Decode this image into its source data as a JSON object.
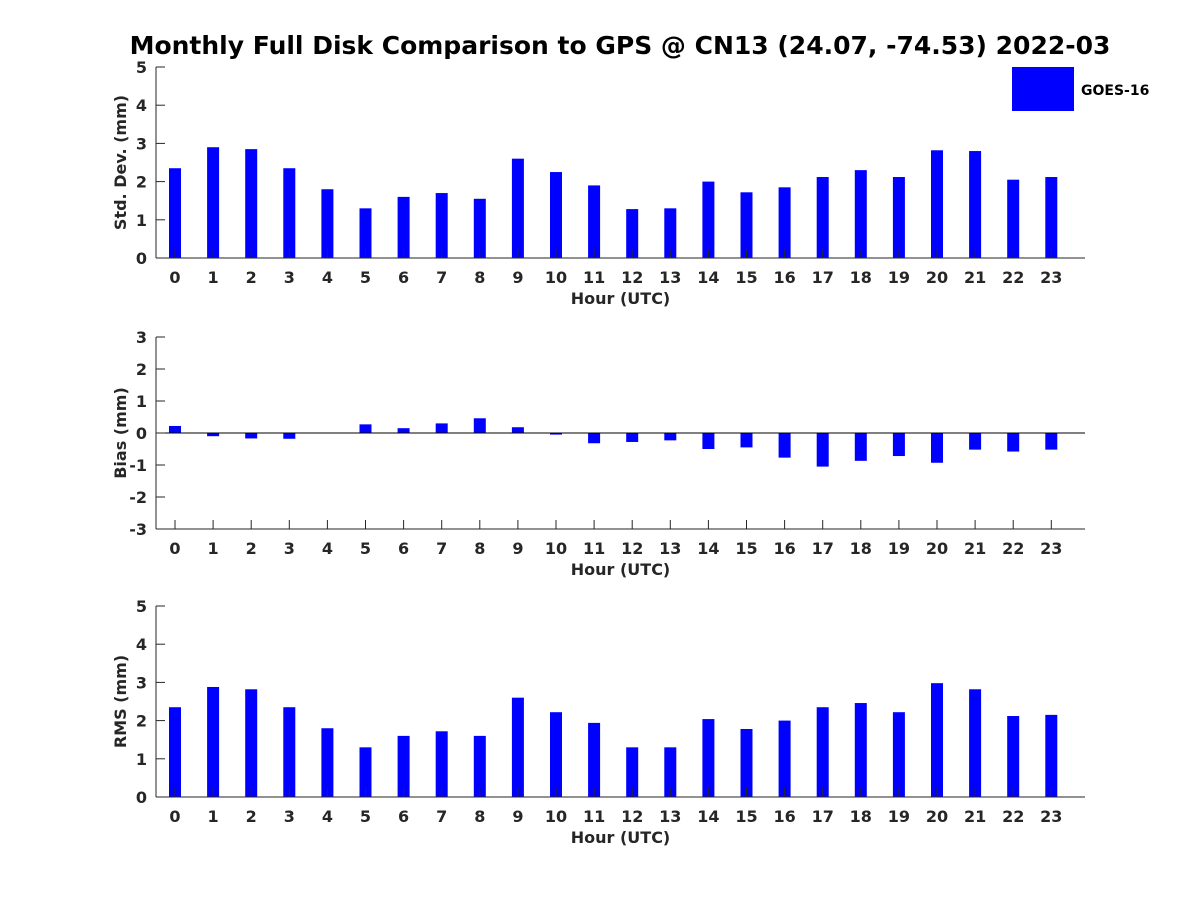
{
  "figure": {
    "title": "Monthly Full Disk Comparison to GPS @ CN13 (24.07, -74.53) 2022-03"
  },
  "legend": {
    "label": "GOES-16",
    "color": "#0000ff",
    "position": "top-right"
  },
  "chart_data": [
    {
      "type": "bar",
      "categories": [
        "0",
        "1",
        "2",
        "3",
        "4",
        "5",
        "6",
        "7",
        "8",
        "9",
        "10",
        "11",
        "12",
        "13",
        "14",
        "15",
        "16",
        "17",
        "18",
        "19",
        "20",
        "21",
        "22",
        "23"
      ],
      "series": [
        {
          "name": "GOES-16",
          "values": [
            2.35,
            2.9,
            2.85,
            2.35,
            1.8,
            1.3,
            1.6,
            1.7,
            1.55,
            2.6,
            2.25,
            1.9,
            1.28,
            1.3,
            2.0,
            1.72,
            1.85,
            2.12,
            2.3,
            2.12,
            2.82,
            2.8,
            2.05,
            2.12
          ]
        }
      ],
      "xlabel": "Hour (UTC)",
      "ylabel": "Std. Dev. (mm)",
      "ylim": [
        0,
        5
      ],
      "yticks": [
        0,
        1,
        2,
        3,
        4,
        5
      ],
      "color": "#0000ff",
      "grid": false
    },
    {
      "type": "bar",
      "categories": [
        "0",
        "1",
        "2",
        "3",
        "4",
        "5",
        "6",
        "7",
        "8",
        "9",
        "10",
        "11",
        "12",
        "13",
        "14",
        "15",
        "16",
        "17",
        "18",
        "19",
        "20",
        "21",
        "22",
        "23"
      ],
      "series": [
        {
          "name": "GOES-16",
          "values": [
            0.22,
            -0.1,
            -0.17,
            -0.18,
            0.0,
            0.27,
            0.15,
            0.3,
            0.46,
            0.18,
            -0.05,
            -0.32,
            -0.28,
            -0.23,
            -0.5,
            -0.45,
            -0.77,
            -1.05,
            -0.87,
            -0.72,
            -0.93,
            -0.52,
            -0.58,
            -0.52
          ]
        }
      ],
      "xlabel": "Hour (UTC)",
      "ylabel": "Bias (mm)",
      "ylim": [
        -3,
        3
      ],
      "yticks": [
        -3,
        -2,
        -1,
        0,
        1,
        2,
        3
      ],
      "color": "#0000ff",
      "grid": false
    },
    {
      "type": "bar",
      "categories": [
        "0",
        "1",
        "2",
        "3",
        "4",
        "5",
        "6",
        "7",
        "8",
        "9",
        "10",
        "11",
        "12",
        "13",
        "14",
        "15",
        "16",
        "17",
        "18",
        "19",
        "20",
        "21",
        "22",
        "23"
      ],
      "series": [
        {
          "name": "GOES-16",
          "values": [
            2.35,
            2.88,
            2.82,
            2.35,
            1.8,
            1.3,
            1.6,
            1.72,
            1.6,
            2.6,
            2.22,
            1.94,
            1.3,
            1.3,
            2.04,
            1.78,
            2.0,
            2.35,
            2.46,
            2.22,
            2.98,
            2.82,
            2.12,
            2.15
          ]
        }
      ],
      "xlabel": "Hour (UTC)",
      "ylabel": "RMS (mm)",
      "ylim": [
        0,
        5
      ],
      "yticks": [
        0,
        1,
        2,
        3,
        4,
        5
      ],
      "color": "#0000ff",
      "grid": false
    }
  ]
}
